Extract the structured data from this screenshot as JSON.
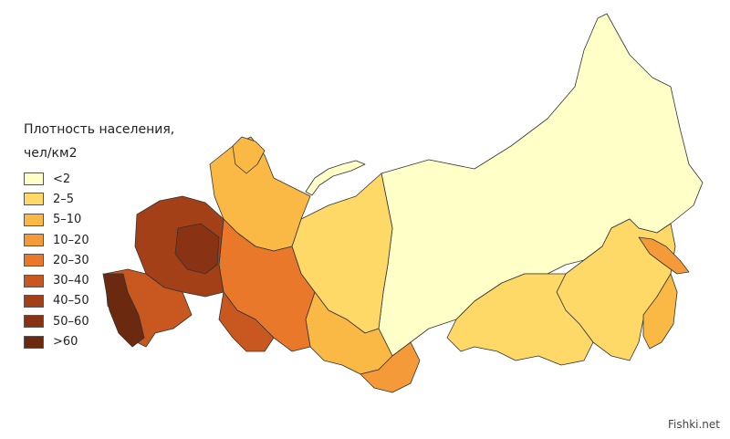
{
  "legend": {
    "title": "Плотность населения,",
    "unit": "чел/км2",
    "items": [
      {
        "label": "<2",
        "color": "#ffffc8"
      },
      {
        "label": "2–5",
        "color": "#fed967"
      },
      {
        "label": "5–10",
        "color": "#f9b944"
      },
      {
        "label": "10–20",
        "color": "#f49a38"
      },
      {
        "label": "20–30",
        "color": "#e9782a"
      },
      {
        "label": "30–40",
        "color": "#c95720"
      },
      {
        "label": "40–50",
        "color": "#a34018"
      },
      {
        "label": "50–60",
        "color": "#8a3214"
      },
      {
        "label": ">60",
        "color": "#6b2a10"
      }
    ]
  },
  "watermark": "Fishki.net"
}
